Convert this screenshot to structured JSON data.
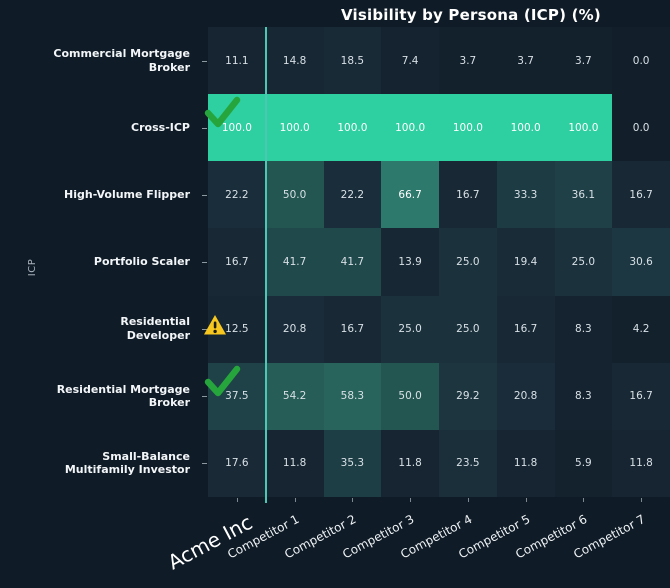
{
  "chart_data": {
    "type": "heatmap",
    "title": "Visibility by Persona (ICP) (%)",
    "ylabel": "ICP",
    "xlabel": "",
    "value_range": [
      0,
      100
    ],
    "value_format": "one_decimal",
    "legend_position": "none",
    "grid": false,
    "columns": [
      "Acme Inc",
      "Competitor 1",
      "Competitor 2",
      "Competitor 3",
      "Competitor 4",
      "Competitor 5",
      "Competitor 6",
      "Competitor 7"
    ],
    "highlight_column": "Acme Inc",
    "rows": [
      {
        "label": "Commercial Mortgage\nBroker",
        "badge": null,
        "values": [
          11.1,
          14.8,
          18.5,
          7.4,
          3.7,
          3.7,
          3.7,
          0.0
        ]
      },
      {
        "label": "Cross-ICP",
        "badge": "check",
        "values": [
          100.0,
          100.0,
          100.0,
          100.0,
          100.0,
          100.0,
          100.0,
          0.0
        ]
      },
      {
        "label": "High-Volume Flipper",
        "badge": null,
        "values": [
          22.2,
          50.0,
          22.2,
          66.7,
          16.7,
          33.3,
          36.1,
          16.7
        ]
      },
      {
        "label": "Portfolio Scaler",
        "badge": null,
        "values": [
          16.7,
          41.7,
          41.7,
          13.9,
          25.0,
          19.4,
          25.0,
          30.6
        ]
      },
      {
        "label": "Residential\nDeveloper",
        "badge": "warning",
        "values": [
          12.5,
          20.8,
          16.7,
          25.0,
          25.0,
          16.7,
          8.3,
          4.2
        ]
      },
      {
        "label": "Residential Mortgage\nBroker",
        "badge": "check",
        "values": [
          37.5,
          54.2,
          58.3,
          50.0,
          29.2,
          20.8,
          8.3,
          16.7
        ]
      },
      {
        "label": "Small-Balance\nMultifamily Investor",
        "badge": null,
        "values": [
          17.6,
          11.8,
          35.3,
          11.8,
          23.5,
          11.8,
          5.9,
          11.8
        ]
      }
    ],
    "colorscale": {
      "stops": [
        [
          0,
          "#121f2b"
        ],
        [
          10,
          "#152430"
        ],
        [
          20,
          "#1a2b38"
        ],
        [
          30,
          "#1c3640"
        ],
        [
          40,
          "#1f464a"
        ],
        [
          50,
          "#235650"
        ],
        [
          60,
          "#2a675e"
        ],
        [
          70,
          "#2e8272"
        ],
        [
          85,
          "#2ea887"
        ],
        [
          100,
          "#2ecfa0"
        ]
      ]
    },
    "colors": {
      "background": "#0f1b27",
      "divider": "#4cc7b3",
      "cell_text": "#d8e0e6",
      "cell_text_bright": "#ffffff",
      "check_icon": "#27a53d",
      "warning_icon": "#f7c71f"
    }
  }
}
